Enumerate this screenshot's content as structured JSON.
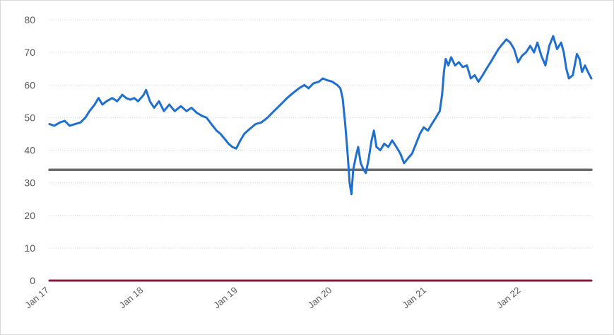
{
  "chart_data": {
    "type": "line",
    "title": "",
    "xlabel": "",
    "ylabel": "",
    "ylim": [
      0,
      80
    ],
    "xlim": [
      "2017-01-01",
      "2022-09-30"
    ],
    "yticks": [
      "0",
      "10",
      "20",
      "30",
      "40",
      "50",
      "60",
      "70",
      "80"
    ],
    "xticks": [
      {
        "label": "Jan 17",
        "date": "2017-01-01"
      },
      {
        "label": "Jan 18",
        "date": "2018-01-01"
      },
      {
        "label": "Jan 19",
        "date": "2019-01-01"
      },
      {
        "label": "Jan 20",
        "date": "2020-01-01"
      },
      {
        "label": "Jan 21",
        "date": "2021-01-01"
      },
      {
        "label": "Jan 22",
        "date": "2022-01-01"
      }
    ],
    "grid": true,
    "legend": "none",
    "series": [
      {
        "color": "#1f6fd1",
        "points": [
          [
            "2017-01-01",
            48
          ],
          [
            "2017-01-20",
            47.5
          ],
          [
            "2017-02-10",
            48.5
          ],
          [
            "2017-03-01",
            49
          ],
          [
            "2017-03-20",
            47.5
          ],
          [
            "2017-04-10",
            48
          ],
          [
            "2017-05-01",
            48.5
          ],
          [
            "2017-05-20",
            50
          ],
          [
            "2017-06-05",
            52
          ],
          [
            "2017-06-25",
            54
          ],
          [
            "2017-07-10",
            56
          ],
          [
            "2017-07-25",
            54
          ],
          [
            "2017-08-10",
            55
          ],
          [
            "2017-09-01",
            56
          ],
          [
            "2017-09-20",
            55
          ],
          [
            "2017-10-10",
            57
          ],
          [
            "2017-10-25",
            56
          ],
          [
            "2017-11-10",
            55.5
          ],
          [
            "2017-11-25",
            56
          ],
          [
            "2017-12-10",
            55
          ],
          [
            "2018-01-01",
            57
          ],
          [
            "2018-01-10",
            58.5
          ],
          [
            "2018-01-25",
            55
          ],
          [
            "2018-02-10",
            53
          ],
          [
            "2018-03-01",
            55
          ],
          [
            "2018-03-20",
            52
          ],
          [
            "2018-04-10",
            54
          ],
          [
            "2018-05-01",
            52
          ],
          [
            "2018-05-25",
            53.5
          ],
          [
            "2018-06-15",
            52
          ],
          [
            "2018-07-05",
            53
          ],
          [
            "2018-07-25",
            51.5
          ],
          [
            "2018-08-15",
            50.5
          ],
          [
            "2018-09-01",
            50
          ],
          [
            "2018-09-20",
            48
          ],
          [
            "2018-10-10",
            46
          ],
          [
            "2018-10-25",
            45
          ],
          [
            "2018-11-10",
            43.5
          ],
          [
            "2018-11-25",
            42
          ],
          [
            "2018-12-10",
            41
          ],
          [
            "2018-12-25",
            40.5
          ],
          [
            "2019-01-10",
            43
          ],
          [
            "2019-01-25",
            45
          ],
          [
            "2019-02-15",
            46.5
          ],
          [
            "2019-03-10",
            48
          ],
          [
            "2019-04-01",
            48.5
          ],
          [
            "2019-04-25",
            50
          ],
          [
            "2019-05-20",
            52
          ],
          [
            "2019-06-15",
            54
          ],
          [
            "2019-07-10",
            56
          ],
          [
            "2019-08-01",
            57.5
          ],
          [
            "2019-08-25",
            59
          ],
          [
            "2019-09-15",
            60
          ],
          [
            "2019-10-01",
            59
          ],
          [
            "2019-10-20",
            60.5
          ],
          [
            "2019-11-10",
            61
          ],
          [
            "2019-11-25",
            62
          ],
          [
            "2019-12-10",
            61.5
          ],
          [
            "2020-01-01",
            61
          ],
          [
            "2020-01-20",
            60
          ],
          [
            "2020-02-01",
            59
          ],
          [
            "2020-02-10",
            56
          ],
          [
            "2020-02-20",
            48
          ],
          [
            "2020-03-01",
            38
          ],
          [
            "2020-03-08",
            30
          ],
          [
            "2020-03-15",
            26.5
          ],
          [
            "2020-03-22",
            34
          ],
          [
            "2020-04-01",
            38
          ],
          [
            "2020-04-10",
            41
          ],
          [
            "2020-04-20",
            36
          ],
          [
            "2020-05-01",
            34
          ],
          [
            "2020-05-10",
            33
          ],
          [
            "2020-05-20",
            37
          ],
          [
            "2020-06-01",
            43
          ],
          [
            "2020-06-10",
            46
          ],
          [
            "2020-06-20",
            41
          ],
          [
            "2020-07-05",
            40
          ],
          [
            "2020-07-20",
            42
          ],
          [
            "2020-08-05",
            41
          ],
          [
            "2020-08-20",
            43
          ],
          [
            "2020-09-05",
            41
          ],
          [
            "2020-09-20",
            39
          ],
          [
            "2020-10-05",
            36
          ],
          [
            "2020-10-20",
            37.5
          ],
          [
            "2020-11-05",
            39
          ],
          [
            "2020-11-20",
            42
          ],
          [
            "2020-12-05",
            45
          ],
          [
            "2020-12-20",
            47
          ],
          [
            "2021-01-05",
            46
          ],
          [
            "2021-01-20",
            48
          ],
          [
            "2021-02-05",
            50
          ],
          [
            "2021-02-20",
            52
          ],
          [
            "2021-03-01",
            57
          ],
          [
            "2021-03-08",
            64
          ],
          [
            "2021-03-15",
            68
          ],
          [
            "2021-03-25",
            66
          ],
          [
            "2021-04-05",
            68.5
          ],
          [
            "2021-04-20",
            66
          ],
          [
            "2021-05-05",
            67
          ],
          [
            "2021-05-20",
            65.5
          ],
          [
            "2021-06-05",
            66
          ],
          [
            "2021-06-20",
            62
          ],
          [
            "2021-07-05",
            63
          ],
          [
            "2021-07-20",
            61
          ],
          [
            "2021-08-05",
            63
          ],
          [
            "2021-08-20",
            65
          ],
          [
            "2021-09-05",
            67
          ],
          [
            "2021-09-20",
            69
          ],
          [
            "2021-10-05",
            71
          ],
          [
            "2021-10-20",
            72.5
          ],
          [
            "2021-11-05",
            74
          ],
          [
            "2021-11-20",
            73
          ],
          [
            "2021-12-05",
            71
          ],
          [
            "2021-12-20",
            67
          ],
          [
            "2022-01-05",
            69
          ],
          [
            "2022-01-20",
            70
          ],
          [
            "2022-02-05",
            72
          ],
          [
            "2022-02-20",
            70
          ],
          [
            "2022-03-05",
            73
          ],
          [
            "2022-03-20",
            69
          ],
          [
            "2022-04-05",
            66
          ],
          [
            "2022-04-20",
            72
          ],
          [
            "2022-05-05",
            75
          ],
          [
            "2022-05-20",
            71
          ],
          [
            "2022-06-05",
            73
          ],
          [
            "2022-06-15",
            70
          ],
          [
            "2022-06-25",
            65
          ],
          [
            "2022-07-05",
            62
          ],
          [
            "2022-07-20",
            63
          ],
          [
            "2022-08-05",
            69.5
          ],
          [
            "2022-08-15",
            68
          ],
          [
            "2022-08-25",
            64
          ],
          [
            "2022-09-05",
            66
          ],
          [
            "2022-09-20",
            63.5
          ],
          [
            "2022-09-30",
            62
          ]
        ]
      },
      {
        "color": "#6b6b6b",
        "points": [
          [
            "2017-01-01",
            34
          ],
          [
            "2022-09-30",
            34
          ]
        ]
      },
      {
        "color": "#8b1a3a",
        "points": [
          [
            "2017-01-01",
            0
          ],
          [
            "2022-09-30",
            0
          ]
        ]
      }
    ]
  }
}
